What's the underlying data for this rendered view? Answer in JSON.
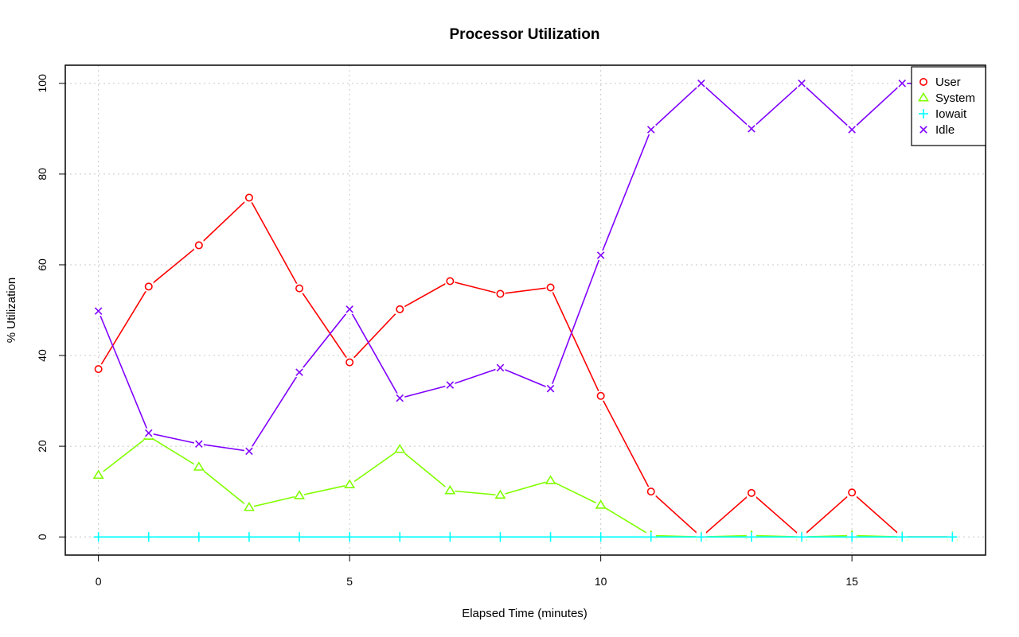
{
  "chart_data": {
    "type": "line",
    "title": "Processor Utilization",
    "xlabel": "Elapsed Time (minutes)",
    "ylabel": "% Utilization",
    "xlim": [
      -0.66,
      17.66
    ],
    "ylim": [
      -4,
      104
    ],
    "x_ticks": [
      0,
      5,
      10,
      15
    ],
    "y_ticks": [
      0,
      20,
      40,
      60,
      80,
      100
    ],
    "grid": true,
    "legend_position": "top-right",
    "x": [
      0,
      1,
      2,
      3,
      4,
      5,
      6,
      7,
      8,
      9,
      10,
      11,
      12,
      13,
      14,
      15,
      16,
      17
    ],
    "series": [
      {
        "name": "User",
        "color": "#ff0000",
        "marker": "circle",
        "values": [
          37,
          55.2,
          64.3,
          74.8,
          54.8,
          38.5,
          50.2,
          56.4,
          53.6,
          55,
          31.1,
          10,
          0,
          9.7,
          0,
          9.8,
          0,
          0
        ]
      },
      {
        "name": "System",
        "color": "#80ff00",
        "marker": "triangle",
        "values": [
          13.6,
          22.2,
          15.4,
          6.5,
          9.1,
          11.5,
          19.3,
          10.2,
          9.2,
          12.4,
          7,
          0.3,
          0,
          0.3,
          0,
          0.3,
          0,
          0
        ]
      },
      {
        "name": "Iowait",
        "color": "#00ffff",
        "marker": "plus",
        "values": [
          0,
          0,
          0,
          0,
          0,
          0,
          0,
          0,
          0,
          0,
          0,
          0,
          0,
          0,
          0,
          0,
          0,
          0
        ]
      },
      {
        "name": "Idle",
        "color": "#8000ff",
        "marker": "cross",
        "values": [
          49.8,
          22.9,
          20.5,
          18.9,
          36.3,
          50.2,
          30.6,
          33.5,
          37.3,
          32.7,
          62.1,
          89.8,
          100,
          90,
          100,
          89.8,
          100,
          100
        ]
      }
    ]
  }
}
